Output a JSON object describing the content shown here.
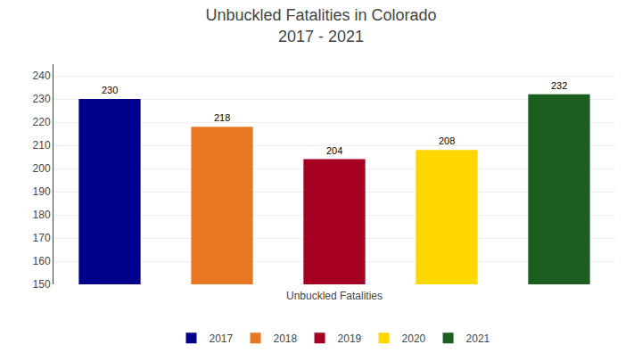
{
  "chart_data": {
    "type": "bar",
    "title": "Unbuckled Fatalities in Colorado",
    "subtitle": "2017 - 2021",
    "xlabel": "Unbuckled Fatalities",
    "categories": [
      "2017",
      "2018",
      "2019",
      "2020",
      "2021"
    ],
    "values": [
      230,
      218,
      204,
      208,
      232
    ],
    "colors": [
      "#00008B",
      "#E87722",
      "#A50021",
      "#FFD700",
      "#1B5E20"
    ],
    "ylim": [
      150,
      245
    ],
    "yticks": [
      150,
      160,
      170,
      180,
      190,
      200,
      210,
      220,
      230,
      240
    ],
    "grid": true,
    "legend": "bottom",
    "data_labels": true,
    "tick_labels": "y"
  }
}
